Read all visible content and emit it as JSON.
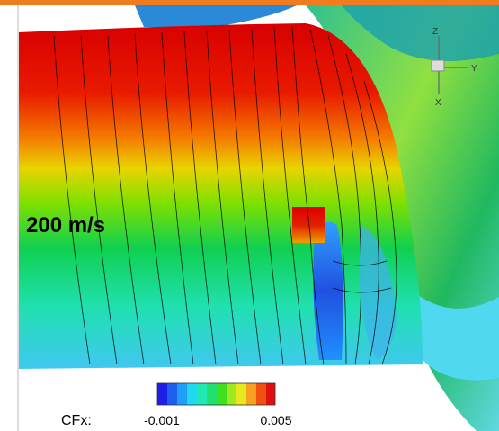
{
  "speed_label": "200 m/s",
  "colorbar": {
    "title": "CFx:",
    "min_label": "-0.001",
    "max_label": "0.005"
  },
  "axes_triad": {
    "z": "Z",
    "y": "Y",
    "x": "X"
  }
}
